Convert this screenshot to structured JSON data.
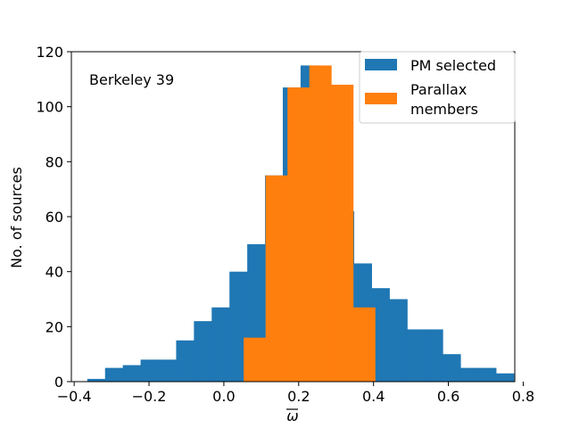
{
  "chart_data": {
    "type": "bar",
    "title": "",
    "annotation": "Berkeley 39",
    "xlabel": "ω",
    "ylabel": "No. of sources",
    "xlim": [
      -0.4075,
      0.7775
    ],
    "ylim": [
      0,
      120
    ],
    "xticks": [
      -0.4,
      -0.2,
      0.0,
      0.2,
      0.4,
      0.6,
      0.8
    ],
    "xtick_labels": [
      "−0.4",
      "−0.2",
      "0.0",
      "0.2",
      "0.4",
      "0.6",
      "0.8"
    ],
    "yticks": [
      0,
      20,
      40,
      60,
      80,
      100,
      120
    ],
    "ytick_labels": [
      "0",
      "20",
      "40",
      "60",
      "80",
      "100",
      "120"
    ],
    "grid": false,
    "legend_position": "top-right",
    "series": [
      {
        "name": "PM selected",
        "color": "#1f77b4",
        "bins": [
          [
            -0.365,
            -0.3175,
            1
          ],
          [
            -0.3175,
            -0.27,
            5
          ],
          [
            -0.27,
            -0.2225,
            6
          ],
          [
            -0.2225,
            -0.175,
            8
          ],
          [
            -0.175,
            -0.1275,
            8
          ],
          [
            -0.1275,
            -0.08,
            15
          ],
          [
            -0.08,
            -0.0325,
            22
          ],
          [
            -0.0325,
            0.015,
            27
          ],
          [
            0.015,
            0.0625,
            40
          ],
          [
            0.0625,
            0.11,
            50
          ],
          [
            0.11,
            0.1575,
            75
          ],
          [
            0.1575,
            0.205,
            107
          ],
          [
            0.205,
            0.2525,
            115
          ],
          [
            0.2525,
            0.3,
            108
          ],
          [
            0.3,
            0.3475,
            62
          ],
          [
            0.3475,
            0.395,
            43
          ],
          [
            0.395,
            0.4425,
            34
          ],
          [
            0.4425,
            0.49,
            30
          ],
          [
            0.49,
            0.5375,
            19
          ],
          [
            0.5375,
            0.585,
            19
          ],
          [
            0.585,
            0.6325,
            10
          ],
          [
            0.6325,
            0.68,
            5
          ],
          [
            0.68,
            0.7275,
            5
          ],
          [
            0.7275,
            0.775,
            3
          ]
        ]
      },
      {
        "name": "Parallax\nmembers",
        "color": "#ff7f0e",
        "bins": [
          [
            0.053,
            0.1115,
            16
          ],
          [
            0.1115,
            0.17,
            75
          ],
          [
            0.17,
            0.2285,
            107
          ],
          [
            0.2285,
            0.287,
            115
          ],
          [
            0.287,
            0.3455,
            108
          ],
          [
            0.3455,
            0.404,
            27
          ]
        ]
      }
    ]
  }
}
